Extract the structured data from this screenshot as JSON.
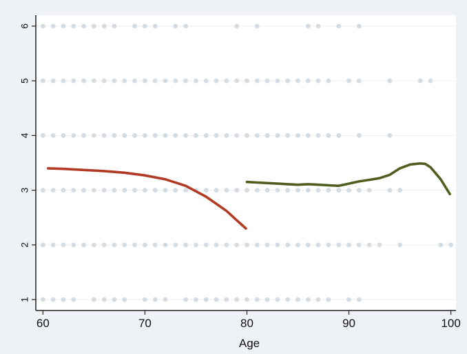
{
  "chart_data": {
    "type": "scatter",
    "title": "",
    "xlabel": "Age",
    "ylabel": "",
    "xlim": [
      59.3,
      100.5
    ],
    "ylim": [
      0.8,
      6.2
    ],
    "xticks": [
      60,
      70,
      80,
      90,
      100
    ],
    "yticks": [
      1,
      2,
      3,
      4,
      5,
      6
    ],
    "grid": true,
    "legend": "none",
    "colors": {
      "scatter": "#d3dbe3",
      "series_1": "#b03a24",
      "series_2": "#4e5e1e",
      "plot_bg": "#ffffff",
      "outer_bg": "#eef2f6"
    },
    "scatter_points": {
      "6": [
        60,
        61,
        62,
        63,
        64,
        65,
        66,
        67,
        69,
        70,
        71,
        73,
        74,
        79,
        81,
        86,
        87,
        89,
        91
      ],
      "5": [
        60,
        61,
        62,
        63,
        64,
        65,
        66,
        67,
        68,
        69,
        70,
        71,
        72,
        73,
        74,
        75,
        76,
        77,
        78,
        79,
        80,
        81,
        82,
        83,
        84,
        85,
        86,
        87,
        88,
        90,
        91,
        94,
        97,
        98
      ],
      "4": [
        60,
        61,
        62,
        63,
        64,
        65,
        66,
        67,
        68,
        69,
        70,
        71,
        72,
        73,
        74,
        75,
        76,
        77,
        78,
        79,
        80,
        81,
        82,
        83,
        84,
        85,
        86,
        87,
        88,
        89,
        91,
        94
      ],
      "3": [
        60,
        61,
        62,
        63,
        64,
        65,
        66,
        67,
        68,
        69,
        70,
        71,
        72,
        73,
        74,
        75,
        76,
        77,
        78,
        79,
        80,
        81,
        82,
        83,
        84,
        85,
        86,
        87,
        88,
        89,
        90,
        91,
        92,
        94,
        95
      ],
      "2": [
        60,
        61,
        62,
        63,
        64,
        65,
        66,
        67,
        68,
        69,
        70,
        71,
        72,
        73,
        74,
        75,
        76,
        77,
        78,
        79,
        80,
        81,
        82,
        83,
        84,
        85,
        86,
        87,
        88,
        89,
        90,
        91,
        92,
        93,
        95,
        99,
        100
      ],
      "1": [
        60,
        61,
        62,
        63,
        65,
        66,
        67,
        68,
        70,
        71,
        72,
        74,
        75,
        76,
        77,
        78,
        79,
        80,
        81,
        82,
        83,
        84,
        85,
        86,
        87,
        88,
        90,
        91
      ]
    },
    "series": [
      {
        "x": [
          60.5,
          62,
          64,
          66,
          68,
          70,
          72,
          74,
          76,
          78,
          79,
          79.9
        ],
        "y": [
          3.4,
          3.39,
          3.37,
          3.35,
          3.32,
          3.27,
          3.2,
          3.08,
          2.88,
          2.62,
          2.45,
          2.3
        ]
      },
      {
        "x": [
          80,
          81,
          82,
          83,
          84,
          85,
          86,
          87,
          88,
          89,
          90,
          91,
          92,
          93,
          94,
          95,
          96,
          97,
          97.5,
          98,
          99,
          99.9
        ],
        "y": [
          3.15,
          3.14,
          3.13,
          3.12,
          3.11,
          3.1,
          3.11,
          3.1,
          3.09,
          3.08,
          3.12,
          3.16,
          3.19,
          3.22,
          3.28,
          3.4,
          3.47,
          3.49,
          3.48,
          3.42,
          3.2,
          2.93
        ]
      }
    ]
  }
}
